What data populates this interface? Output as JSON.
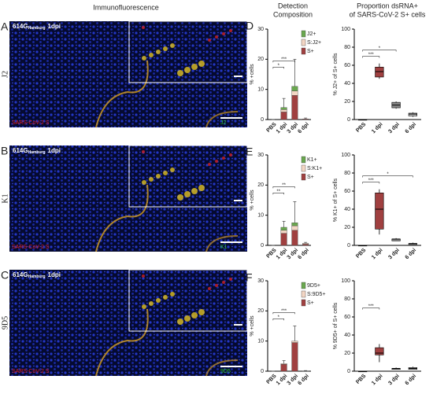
{
  "headers": {
    "left": "Immunofluorescence",
    "middle": [
      "Detection",
      "Composition"
    ],
    "right": [
      "Proportion dsRNA+",
      "of SARS-CoV-2 S+ cells"
    ]
  },
  "panels": [
    {
      "letter": "A",
      "antibody": "J2",
      "strain": "614G",
      "sub": "Hamburg",
      "time": "1dpi",
      "stain1": "SARS-CoV-2 S",
      "stain2": "J2"
    },
    {
      "letter": "B",
      "antibody": "K1",
      "strain": "614G",
      "sub": "Hamburg",
      "time": "1dpi",
      "stain1": "SARS-CoV-2 S",
      "stain2": "K1"
    },
    {
      "letter": "C",
      "antibody": "9D5",
      "strain": "614G",
      "sub": "Hamburg",
      "time": "1dpi",
      "stain1": "SARS-CoV-2 S",
      "stain2": "9D5"
    }
  ],
  "chart_data": [
    {
      "type": "stacked-bar",
      "label": "D",
      "ylabel": "% +cells",
      "categories": [
        "PBS",
        "1 dpi",
        "3 dpi",
        "6 dpi"
      ],
      "ylim": [
        0,
        30
      ],
      "yticks": [
        0,
        10,
        20,
        30
      ],
      "series": [
        {
          "name": "J2+",
          "color": "#6aa84f",
          "values": [
            0,
            0.7,
            1.5,
            0
          ]
        },
        {
          "name": "S:J2+",
          "color": "#f3d6c4",
          "values": [
            0,
            0.8,
            1.5,
            0
          ]
        },
        {
          "name": "S+",
          "color": "#a04040",
          "values": [
            0,
            2.5,
            8,
            0.2
          ]
        }
      ],
      "errors": [
        0,
        3,
        9,
        0.3
      ],
      "annotations": [
        {
          "label": "*",
          "from": 0,
          "to": 1
        },
        {
          "label": "***",
          "from": 0,
          "to": 2
        }
      ]
    },
    {
      "type": "box",
      "ylabel": "% J2+ of S+ cells",
      "categories": [
        "PBS",
        "1 dpi",
        "3 dpi",
        "6 dpi"
      ],
      "ylim": [
        0,
        100
      ],
      "yticks": [
        0,
        20,
        40,
        60,
        80,
        100
      ],
      "colors": [
        "#777777",
        "#a04040",
        "#8a8a8a",
        "#c8c8c8"
      ],
      "min": [
        0,
        45,
        12,
        3
      ],
      "q1": [
        0,
        47,
        13,
        4
      ],
      "median": [
        0,
        53,
        16,
        6
      ],
      "q3": [
        0,
        58,
        19,
        7
      ],
      "max": [
        0,
        62,
        20,
        8
      ],
      "annotations": [
        {
          "label": "***",
          "from": 0,
          "to": 1
        },
        {
          "label": "*",
          "from": 0,
          "to": 2
        }
      ]
    },
    {
      "type": "stacked-bar",
      "label": "E",
      "ylabel": "% +cells",
      "categories": [
        "PBS",
        "1 dpi",
        "3 dpi",
        "6 dpi"
      ],
      "ylim": [
        0,
        30
      ],
      "yticks": [
        0,
        10,
        20,
        30
      ],
      "series": [
        {
          "name": "K1+",
          "color": "#6aa84f",
          "values": [
            0,
            1,
            1,
            0
          ]
        },
        {
          "name": "S:K1+",
          "color": "#f3d6c4",
          "values": [
            0,
            1,
            1.5,
            0.3
          ]
        },
        {
          "name": "S+",
          "color": "#a04040",
          "values": [
            0,
            4,
            5,
            0.4
          ]
        }
      ],
      "errors": [
        0,
        2,
        7,
        0.3
      ],
      "annotations": [
        {
          "label": "**",
          "from": 0,
          "to": 1
        },
        {
          "label": "**",
          "from": 0,
          "to": 2
        }
      ]
    },
    {
      "type": "box",
      "ylabel": "% K1+ of S+ cells",
      "categories": [
        "PBS",
        "1 dpi",
        "3 dpi",
        "6 dpi"
      ],
      "ylim": [
        0,
        100
      ],
      "yticks": [
        0,
        20,
        40,
        60,
        80,
        100
      ],
      "colors": [
        "#777777",
        "#a04040",
        "#8a8a8a",
        "#c8c8c8"
      ],
      "min": [
        0,
        12,
        5,
        1
      ],
      "q1": [
        0,
        18,
        5,
        1
      ],
      "median": [
        0,
        40,
        7,
        2
      ],
      "q3": [
        0,
        58,
        7,
        2
      ],
      "max": [
        0,
        62,
        8,
        3
      ],
      "annotations": [
        {
          "label": "***",
          "from": 0,
          "to": 1
        },
        {
          "label": "*",
          "from": 0,
          "to": 3
        }
      ]
    },
    {
      "type": "stacked-bar",
      "label": "F",
      "ylabel": "% +cells",
      "categories": [
        "PBS",
        "1 dpi",
        "3 dpi",
        "6 dpi"
      ],
      "ylim": [
        0,
        30
      ],
      "yticks": [
        0,
        10,
        20,
        30
      ],
      "series": [
        {
          "name": "9D5+",
          "color": "#6aa84f",
          "values": [
            0,
            0,
            0,
            0
          ]
        },
        {
          "name": "S:9D5+",
          "color": "#f3d6c4",
          "values": [
            0,
            0.2,
            0.5,
            0
          ]
        },
        {
          "name": "S+",
          "color": "#a04040",
          "values": [
            0,
            2.3,
            9.5,
            0.1
          ]
        }
      ],
      "errors": [
        0,
        1,
        5,
        0.1
      ],
      "annotations": [
        {
          "label": "*",
          "from": 0,
          "to": 1
        },
        {
          "label": "***",
          "from": 0,
          "to": 2
        }
      ]
    },
    {
      "type": "box",
      "ylabel": "% 9D5+ of S+ cells",
      "categories": [
        "PBS",
        "1 dpi",
        "3 dpi",
        "6 dpi"
      ],
      "ylim": [
        0,
        100
      ],
      "yticks": [
        0,
        20,
        40,
        60,
        80,
        100
      ],
      "colors": [
        "#777777",
        "#a04040",
        "#8a8a8a",
        "#c8c8c8"
      ],
      "min": [
        0,
        10,
        2,
        2
      ],
      "q1": [
        0,
        18,
        2,
        2
      ],
      "median": [
        0,
        20,
        3,
        3
      ],
      "q3": [
        0,
        26,
        3,
        4
      ],
      "max": [
        0,
        30,
        4,
        5
      ],
      "annotations": [
        {
          "label": "***",
          "from": 0,
          "to": 1
        }
      ]
    }
  ]
}
